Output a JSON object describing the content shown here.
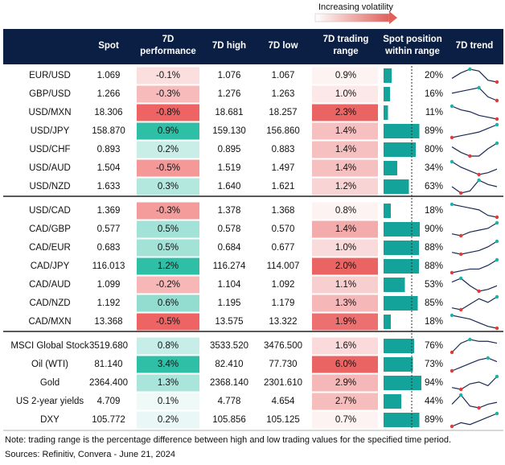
{
  "legend_note": "Increasing volatility",
  "header": {
    "spot": "Spot",
    "perf": [
      "7D",
      "performance"
    ],
    "high": "7D high",
    "low": "7D low",
    "range": [
      "7D trading",
      "range"
    ],
    "position": [
      "Spot position",
      "within range"
    ],
    "trend": "7D trend"
  },
  "groups": [
    {
      "rows": [
        {
          "name": "EUR/USD",
          "spot": "1.069",
          "perf": "-0.1%",
          "high": "1.076",
          "low": "1.067",
          "range": "0.9%",
          "position": "20%",
          "trend": [
            4,
            7,
            9,
            8,
            3,
            2
          ]
        },
        {
          "name": "GBP/USD",
          "spot": "1.266",
          "perf": "-0.3%",
          "high": "1.276",
          "low": "1.263",
          "range": "1.0%",
          "position": "16%",
          "trend": [
            6,
            7,
            8,
            9,
            4,
            2
          ]
        },
        {
          "name": "USD/MXN",
          "spot": "18.306",
          "perf": "-0.8%",
          "high": "18.681",
          "low": "18.257",
          "range": "2.3%",
          "position": "11%",
          "trend": [
            9,
            7,
            6,
            4,
            3,
            2
          ]
        },
        {
          "name": "USD/JPY",
          "spot": "158.870",
          "perf": "0.9%",
          "high": "159.130",
          "low": "156.860",
          "range": "1.4%",
          "position": "89%",
          "trend": [
            2,
            3,
            4,
            5,
            7,
            9
          ]
        },
        {
          "name": "USD/CHF",
          "spot": "0.893",
          "perf": "0.2%",
          "high": "0.895",
          "low": "0.883",
          "range": "1.4%",
          "position": "80%",
          "trend": [
            7,
            4,
            2,
            2,
            6,
            9
          ]
        },
        {
          "name": "USD/AUD",
          "spot": "1.504",
          "perf": "-0.5%",
          "high": "1.519",
          "low": "1.497",
          "range": "1.4%",
          "position": "34%",
          "trend": [
            9,
            6,
            4,
            2,
            3,
            5
          ]
        },
        {
          "name": "USD/NZD",
          "spot": "1.633",
          "perf": "0.3%",
          "high": "1.640",
          "low": "1.621",
          "range": "1.2%",
          "position": "63%",
          "trend": [
            6,
            3,
            4,
            9,
            7,
            6
          ]
        }
      ]
    },
    {
      "rows": [
        {
          "name": "USD/CAD",
          "spot": "1.369",
          "perf": "-0.3%",
          "high": "1.378",
          "low": "1.368",
          "range": "0.8%",
          "position": "18%",
          "trend": [
            9,
            8,
            7,
            6,
            3,
            2
          ]
        },
        {
          "name": "CAD/GBP",
          "spot": "0.577",
          "perf": "0.5%",
          "high": "0.578",
          "low": "0.570",
          "range": "1.4%",
          "position": "90%",
          "trend": [
            3,
            2,
            4,
            5,
            6,
            9
          ]
        },
        {
          "name": "CAD/EUR",
          "spot": "0.683",
          "perf": "0.5%",
          "high": "0.684",
          "low": "0.677",
          "range": "1.0%",
          "position": "88%",
          "trend": [
            3,
            2,
            3,
            4,
            6,
            9
          ]
        },
        {
          "name": "CAD/JPY",
          "spot": "116.013",
          "perf": "1.2%",
          "high": "116.274",
          "low": "114.007",
          "range": "2.0%",
          "position": "88%",
          "trend": [
            2,
            3,
            4,
            4,
            6,
            9
          ]
        },
        {
          "name": "CAD/AUD",
          "spot": "1.099",
          "perf": "-0.2%",
          "high": "1.104",
          "low": "1.092",
          "range": "1.1%",
          "position": "53%",
          "trend": [
            7,
            9,
            5,
            2,
            3,
            5
          ]
        },
        {
          "name": "CAD/NZD",
          "spot": "1.192",
          "perf": "0.6%",
          "high": "1.195",
          "low": "1.179",
          "range": "1.3%",
          "position": "85%",
          "trend": [
            3,
            2,
            5,
            8,
            6,
            9
          ]
        },
        {
          "name": "CAD/MXN",
          "spot": "13.368",
          "perf": "-0.5%",
          "high": "13.575",
          "low": "13.322",
          "range": "1.9%",
          "position": "18%",
          "trend": [
            9,
            8,
            7,
            5,
            3,
            2
          ]
        }
      ]
    },
    {
      "rows": [
        {
          "name": "MSCI Global Stock",
          "spot": "3519.680",
          "perf": "0.8%",
          "high": "3533.520",
          "low": "3476.500",
          "range": "1.6%",
          "position": "76%",
          "trend": [
            2,
            7,
            9,
            8,
            8,
            7
          ]
        },
        {
          "name": "Oil (WTI)",
          "spot": "81.140",
          "perf": "3.4%",
          "high": "82.410",
          "low": "77.730",
          "range": "6.0%",
          "position": "73%",
          "trend": [
            2,
            4,
            6,
            8,
            9,
            7
          ]
        },
        {
          "name": "Gold",
          "spot": "2364.400",
          "perf": "1.3%",
          "high": "2368.140",
          "low": "2301.610",
          "range": "2.9%",
          "position": "94%",
          "trend": [
            3,
            2,
            5,
            6,
            4,
            9
          ]
        },
        {
          "name": "US 2-year yields",
          "spot": "4.709",
          "perf": "0.1%",
          "high": "4.778",
          "low": "4.654",
          "range": "2.7%",
          "position": "44%",
          "trend": [
            4,
            9,
            3,
            2,
            4,
            5
          ]
        },
        {
          "name": "DXY",
          "spot": "105.772",
          "perf": "0.2%",
          "high": "105.856",
          "low": "105.125",
          "range": "0.7%",
          "position": "89%",
          "trend": [
            2,
            4,
            3,
            5,
            7,
            9
          ]
        }
      ]
    }
  ],
  "note": "Note: trading range is the percentage difference between high and low trading values for the specified time period.",
  "source": "Sources: Refinitiv, Convera - June 21, 2024"
}
